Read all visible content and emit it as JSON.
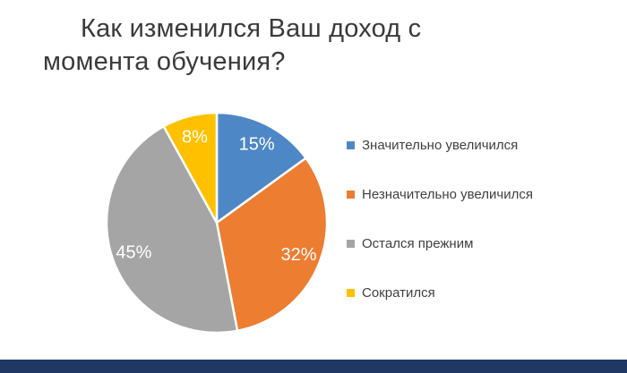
{
  "title": {
    "line1": "Как изменился Ваш доход с",
    "line2": "момента обучения?"
  },
  "chart_data": {
    "type": "pie",
    "title": "Как изменился Ваш доход с момента обучения?",
    "direction": "clockwise",
    "start_angle_deg": 0,
    "legend_position": "right",
    "label_color": "#FFFFFF",
    "label_radius_ratio": 0.8,
    "slices": [
      {
        "label": "Значительно увеличился",
        "value": 15,
        "pct_label": "15%",
        "color": "#4E87C6"
      },
      {
        "label": "Незначительно увеличился",
        "value": 32,
        "pct_label": "32%",
        "color": "#ED7D31"
      },
      {
        "label": "Остался прежним",
        "value": 45,
        "pct_label": "45%",
        "color": "#A5A5A5"
      },
      {
        "label": "Сократился",
        "value": 8,
        "pct_label": "8%",
        "color": "#FFC000"
      }
    ]
  },
  "footer": {
    "bar_color": "#1F3864"
  }
}
